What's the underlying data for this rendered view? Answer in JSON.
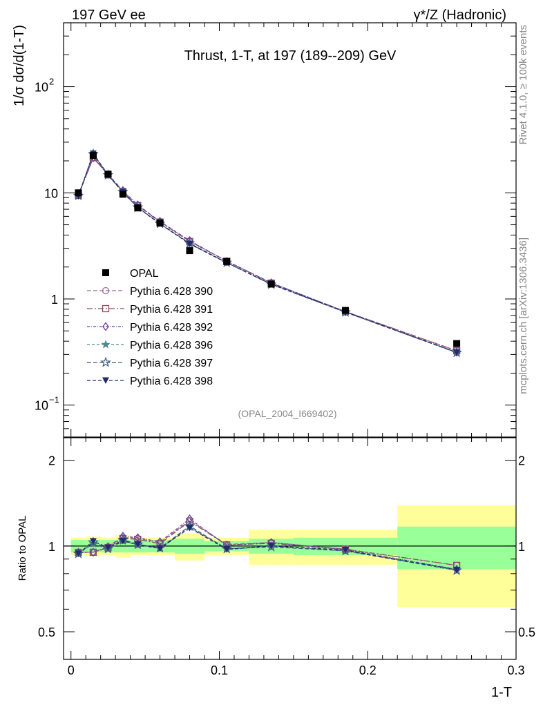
{
  "header": {
    "left": "197 GeV ee",
    "right": "γ*/Z (Hadronic)",
    "side_upper": "Rivet 4.1.0, ≥ 100k events",
    "side_lower": "mcplots.cern.ch [arXiv:1306.3436]"
  },
  "chart_data": {
    "type": "line",
    "title": "Thrust, 1-T, at 197 (189--209) GeV",
    "analysis_id": "(OPAL_2004_I669402)",
    "xlabel": "1-T",
    "ylabel_main": "1/σ  dσ/d(1-T)",
    "ylabel_ratio": "Ratio to OPAL",
    "xlim": [
      -0.005,
      0.3
    ],
    "ylim_main": [
      0.05,
      400
    ],
    "ylim_ratio": [
      0.4,
      2.4
    ],
    "yscale": "log",
    "x_ticks": [
      0,
      0.1,
      0.2,
      0.3
    ],
    "x_tick_labels": [
      "0",
      "0.1",
      "0.2",
      "0.3"
    ],
    "main_y_ticks": [
      {
        "v": 0.1,
        "label": "10",
        "sup": "−1"
      },
      {
        "v": 1,
        "label": "1",
        "sup": ""
      },
      {
        "v": 10,
        "label": "10",
        "sup": ""
      },
      {
        "v": 100,
        "label": "10",
        "sup": "2"
      }
    ],
    "ratio_y_ticks": [
      {
        "v": 0.5,
        "label": "0.5"
      },
      {
        "v": 1,
        "label": "1"
      },
      {
        "v": 2,
        "label": "2"
      }
    ],
    "bin_edges": [
      0,
      0.01,
      0.02,
      0.03,
      0.04,
      0.05,
      0.07,
      0.09,
      0.12,
      0.15,
      0.22,
      0.3
    ],
    "x": [
      0.005,
      0.015,
      0.025,
      0.035,
      0.045,
      0.06,
      0.08,
      0.105,
      0.135,
      0.185,
      0.26
    ],
    "data": {
      "name": "OPAL",
      "values": [
        10.0,
        22.5,
        15.0,
        9.7,
        7.2,
        5.2,
        2.85,
        2.25,
        1.38,
        0.78,
        0.38
      ]
    },
    "band_stat": [
      0.05,
      0.05,
      0.05,
      0.05,
      0.05,
      0.05,
      0.06,
      0.04,
      0.06,
      0.07,
      0.17
    ],
    "band_total": [
      0.07,
      0.08,
      0.07,
      0.09,
      0.07,
      0.07,
      0.11,
      0.07,
      0.14,
      0.14,
      0.39
    ],
    "series": [
      {
        "name": "Pythia 6.428 390",
        "color": "#9a6b9c",
        "marker": "circle-open",
        "dash": "6,3",
        "values": [
          9.5,
          21.4,
          14.9,
          10.4,
          7.65,
          5.35,
          3.5,
          2.28,
          1.42,
          0.76,
          0.325
        ]
      },
      {
        "name": "Pythia 6.428 391",
        "color": "#8a5060",
        "marker": "square-open",
        "dash": "8,3,2,3",
        "values": [
          9.5,
          21.4,
          14.8,
          10.3,
          7.6,
          5.3,
          3.48,
          2.27,
          1.41,
          0.76,
          0.325
        ]
      },
      {
        "name": "Pythia 6.428 392",
        "color": "#6a3fa0",
        "marker": "diamond-open",
        "dash": "4,2,1,2",
        "values": [
          9.5,
          21.4,
          14.9,
          10.5,
          7.7,
          5.38,
          3.55,
          2.26,
          1.42,
          0.757,
          0.315
        ]
      },
      {
        "name": "Pythia 6.428 396",
        "color": "#4e8a8c",
        "marker": "star-filled",
        "dash": "4,3",
        "values": [
          9.4,
          22.9,
          14.6,
          10.1,
          7.25,
          5.1,
          3.32,
          2.2,
          1.38,
          0.75,
          0.315
        ]
      },
      {
        "name": "Pythia 6.428 397",
        "color": "#3a5a82",
        "marker": "star-open",
        "dash": "6,3",
        "values": [
          9.4,
          23.2,
          14.7,
          10.2,
          7.3,
          5.12,
          3.35,
          2.2,
          1.37,
          0.75,
          0.312
        ]
      },
      {
        "name": "Pythia 6.428 398",
        "color": "#242a6c",
        "marker": "triangle-down",
        "dash": "5,3",
        "values": [
          9.4,
          23.4,
          14.8,
          10.1,
          7.3,
          5.1,
          3.3,
          2.19,
          1.38,
          0.755,
          0.313
        ]
      }
    ]
  }
}
